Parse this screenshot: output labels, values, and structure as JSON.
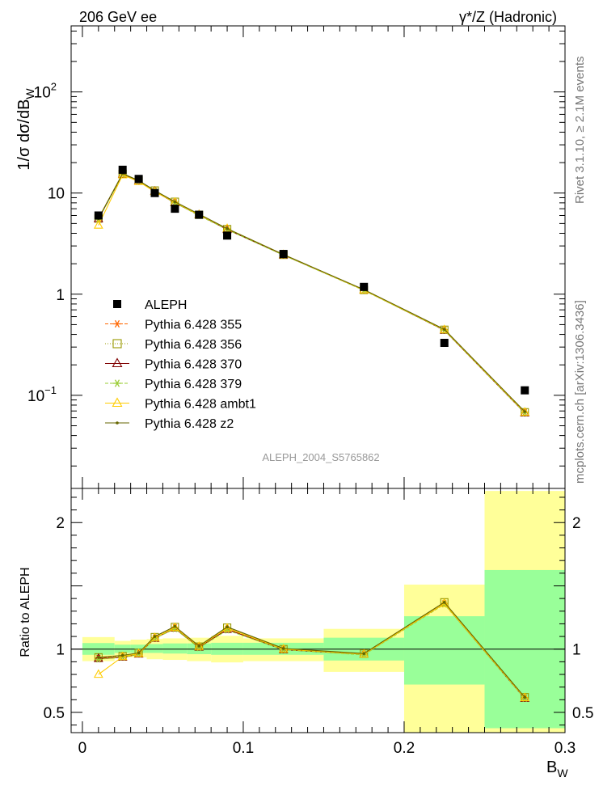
{
  "header": {
    "left": "206 GeV ee",
    "right": "γ*/Z (Hadronic)"
  },
  "side": {
    "rivet": "Rivet 3.1.10, ≥ 2.1M events",
    "mcplots": "mcplots.cern.ch [arXiv:1306.3436]"
  },
  "analysis_label": "ALEPH_2004_S5765862",
  "colors": {
    "data": "#000000",
    "green_band": "#99ff99",
    "yellow_band": "#ffff99",
    "p355": "#ff6600",
    "p356": "#999900",
    "p370": "#800000",
    "p379": "#99cc33",
    "ambt1": "#ffcc00",
    "z2": "#666600"
  },
  "chart_data": [
    {
      "type": "line",
      "title": "",
      "xlabel": "",
      "ylabel": "1/σ  dσ/dB_W",
      "yscale": "log",
      "xlim": [
        -0.007,
        0.3
      ],
      "ylim": [
        0.012,
        450
      ],
      "yticks": [
        "10^{-1}",
        "1",
        "10",
        "10^{2}"
      ],
      "x": [
        0.01,
        0.025,
        0.035,
        0.045,
        0.0575,
        0.0725,
        0.09,
        0.125,
        0.175,
        0.225,
        0.275
      ],
      "data": {
        "name": "ALEPH",
        "values": [
          6.0,
          17.0,
          13.8,
          10.0,
          7.0,
          6.1,
          3.8,
          2.5,
          1.18,
          0.33,
          0.112
        ]
      },
      "series": [
        {
          "name": "Pythia 6.428 355",
          "key": "p355",
          "marker": "star",
          "dash": "4 2",
          "values": [
            5.6,
            15.4,
            13.2,
            10.5,
            8.1,
            6.1,
            4.4,
            2.45,
            1.1,
            0.445,
            0.068
          ]
        },
        {
          "name": "Pythia 6.428 356",
          "key": "p356",
          "marker": "square",
          "dash": "1 2",
          "values": [
            5.6,
            15.5,
            13.3,
            10.6,
            8.2,
            6.1,
            4.4,
            2.45,
            1.1,
            0.445,
            0.068
          ]
        },
        {
          "name": "Pythia 6.428 370",
          "key": "p370",
          "marker": "triangle",
          "dash": "",
          "values": [
            5.55,
            15.3,
            13.2,
            10.4,
            8.0,
            6.1,
            4.35,
            2.44,
            1.1,
            0.44,
            0.067
          ]
        },
        {
          "name": "Pythia 6.428 379",
          "key": "p379",
          "marker": "star",
          "dash": "4 2",
          "values": [
            5.5,
            15.2,
            13.1,
            10.4,
            8.0,
            6.0,
            4.35,
            2.43,
            1.09,
            0.44,
            0.067
          ]
        },
        {
          "name": "Pythia 6.428 ambt1",
          "key": "ambt1",
          "marker": "triangle",
          "dash": "",
          "values": [
            4.8,
            15.1,
            13.0,
            10.3,
            8.1,
            6.1,
            4.45,
            2.46,
            1.1,
            0.445,
            0.068
          ]
        },
        {
          "name": "Pythia 6.428 z2",
          "key": "z2",
          "marker": "dot",
          "dash": "",
          "values": [
            5.6,
            15.6,
            13.3,
            10.6,
            8.2,
            6.2,
            4.45,
            2.47,
            1.11,
            0.45,
            0.069
          ]
        }
      ],
      "legend_position": "center-left"
    },
    {
      "type": "line",
      "title": "",
      "xlabel": "B_W",
      "ylabel": "Ratio to ALEPH",
      "yscale": "linear",
      "xlim": [
        -0.007,
        0.3
      ],
      "ylim": [
        0.34,
        2.27
      ],
      "xticks": [
        "0",
        "0.1",
        "0.2",
        "0.3"
      ],
      "yticks": [
        "0.5",
        "1",
        "2"
      ],
      "bins": [
        {
          "lo": 0.0,
          "hi": 0.02,
          "stat": [
            0.955,
            1.048
          ],
          "tot": [
            0.905,
            1.095
          ]
        },
        {
          "lo": 0.02,
          "hi": 0.03,
          "stat": [
            0.97,
            1.035
          ],
          "tot": [
            0.935,
            1.065
          ]
        },
        {
          "lo": 0.03,
          "hi": 0.04,
          "stat": [
            0.97,
            1.035
          ],
          "tot": [
            0.935,
            1.075
          ]
        },
        {
          "lo": 0.04,
          "hi": 0.05,
          "stat": [
            0.97,
            1.04
          ],
          "tot": [
            0.92,
            1.08
          ]
        },
        {
          "lo": 0.05,
          "hi": 0.065,
          "stat": [
            0.965,
            1.045
          ],
          "tot": [
            0.915,
            1.085
          ]
        },
        {
          "lo": 0.065,
          "hi": 0.08,
          "stat": [
            0.96,
            1.045
          ],
          "tot": [
            0.905,
            1.09
          ]
        },
        {
          "lo": 0.08,
          "hi": 0.1,
          "stat": [
            0.955,
            1.05
          ],
          "tot": [
            0.895,
            1.105
          ]
        },
        {
          "lo": 0.1,
          "hi": 0.15,
          "stat": [
            0.955,
            1.05
          ],
          "tot": [
            0.905,
            1.085
          ]
        },
        {
          "lo": 0.15,
          "hi": 0.2,
          "stat": [
            0.91,
            1.09
          ],
          "tot": [
            0.82,
            1.16
          ]
        },
        {
          "lo": 0.2,
          "hi": 0.25,
          "stat": [
            0.72,
            1.26
          ],
          "tot": [
            0.34,
            1.51
          ]
        },
        {
          "lo": 0.25,
          "hi": 0.3,
          "stat": [
            0.375,
            1.625
          ],
          "tot": [
            0.34,
            2.25
          ]
        }
      ],
      "series": [
        {
          "name": "Pythia 6.428 355",
          "key": "p355",
          "marker": "star",
          "dash": "4 2",
          "values": [
            0.93,
            0.94,
            0.965,
            1.09,
            1.17,
            1.02,
            1.16,
            1.0,
            0.96,
            1.36,
            0.615
          ]
        },
        {
          "name": "Pythia 6.428 356",
          "key": "p356",
          "marker": "square",
          "dash": "1 2",
          "values": [
            0.935,
            0.945,
            0.97,
            1.095,
            1.175,
            1.02,
            1.17,
            1.0,
            0.965,
            1.37,
            0.62
          ]
        },
        {
          "name": "Pythia 6.428 370",
          "key": "p370",
          "marker": "triangle",
          "dash": "",
          "values": [
            0.925,
            0.935,
            0.96,
            1.085,
            1.165,
            1.015,
            1.155,
            0.995,
            0.96,
            1.36,
            0.61
          ]
        },
        {
          "name": "Pythia 6.428 379",
          "key": "p379",
          "marker": "star",
          "dash": "4 2",
          "values": [
            0.92,
            0.935,
            0.96,
            1.085,
            1.16,
            1.01,
            1.15,
            0.995,
            0.955,
            1.355,
            0.61
          ]
        },
        {
          "name": "Pythia 6.428 ambt1",
          "key": "ambt1",
          "marker": "triangle",
          "dash": "",
          "values": [
            0.8,
            0.94,
            0.965,
            1.09,
            1.17,
            1.02,
            1.165,
            1.0,
            0.96,
            1.36,
            0.615
          ]
        },
        {
          "name": "Pythia 6.428 z2",
          "key": "z2",
          "marker": "dot",
          "dash": "",
          "values": [
            0.935,
            0.95,
            0.97,
            1.1,
            1.18,
            1.025,
            1.175,
            1.005,
            0.965,
            1.37,
            0.62
          ]
        }
      ]
    }
  ]
}
